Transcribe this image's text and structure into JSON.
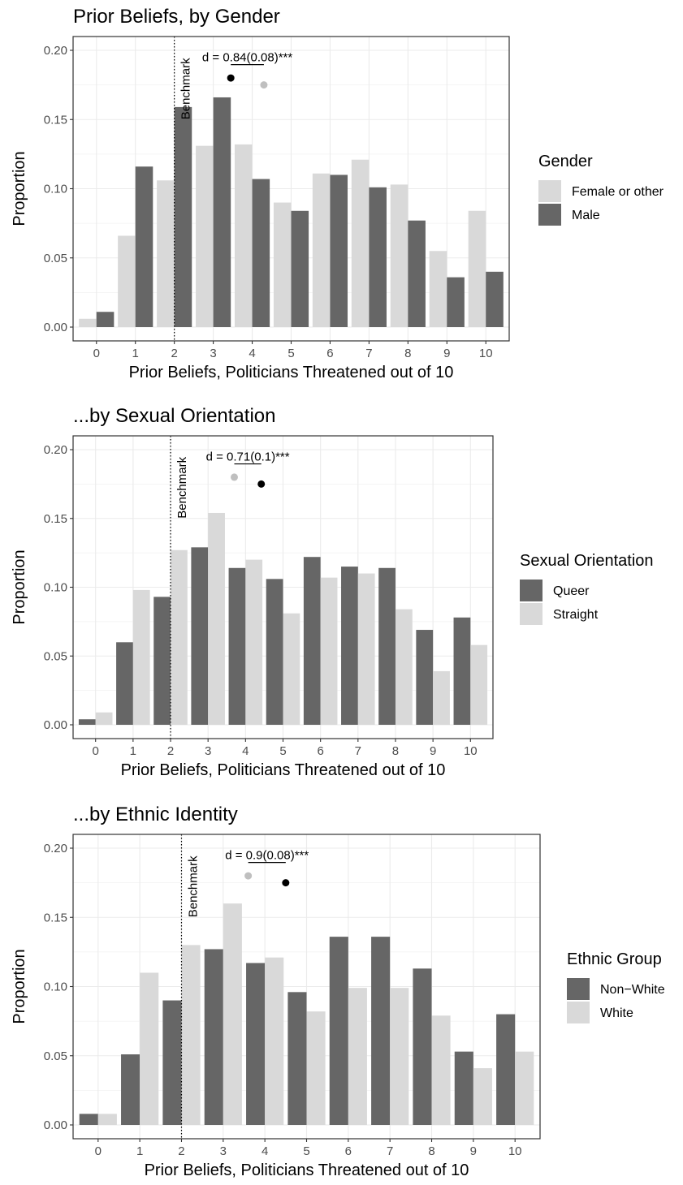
{
  "chart_data": [
    {
      "type": "bar",
      "title": "Prior Beliefs, by Gender",
      "xlabel": "Prior Beliefs, Politicians Threatened out of 10",
      "ylabel": "Proportion",
      "categories": [
        "0",
        "1",
        "2",
        "3",
        "4",
        "5",
        "6",
        "7",
        "8",
        "9",
        "10"
      ],
      "ylim": [
        0,
        0.205
      ],
      "yticks": [
        "0.00",
        "0.05",
        "0.10",
        "0.15",
        "0.20"
      ],
      "grid": true,
      "legend_title": "Gender",
      "legend_position": "right",
      "series": [
        {
          "name": "Female or other",
          "color": "#d9d9d9",
          "values": [
            0.006,
            0.066,
            0.106,
            0.131,
            0.132,
            0.09,
            0.111,
            0.121,
            0.103,
            0.055,
            0.084
          ]
        },
        {
          "name": "Male",
          "color": "#666666",
          "values": [
            0.011,
            0.116,
            0.159,
            0.166,
            0.107,
            0.084,
            0.11,
            0.101,
            0.077,
            0.036,
            0.04
          ]
        }
      ],
      "benchmark": {
        "x": 2,
        "label": "Benchmark"
      },
      "annotation": "d = 0.84(0.08)***",
      "means": [
        {
          "series": "Male",
          "value": 3.45,
          "y": 0.18,
          "color": "#000000"
        },
        {
          "series": "Female or other",
          "value": 4.3,
          "y": 0.175,
          "color": "#bfbfbf"
        }
      ]
    },
    {
      "type": "bar",
      "title": "...by Sexual Orientation",
      "xlabel": "Prior Beliefs, Politicians Threatened out of 10",
      "ylabel": "Proportion",
      "categories": [
        "0",
        "1",
        "2",
        "3",
        "4",
        "5",
        "6",
        "7",
        "8",
        "9",
        "10"
      ],
      "ylim": [
        0,
        0.205
      ],
      "yticks": [
        "0.00",
        "0.05",
        "0.10",
        "0.15",
        "0.20"
      ],
      "grid": true,
      "legend_title": "Sexual Orientation",
      "legend_position": "right",
      "series": [
        {
          "name": "Queer",
          "color": "#666666",
          "values": [
            0.004,
            0.06,
            0.093,
            0.129,
            0.114,
            0.106,
            0.122,
            0.115,
            0.114,
            0.069,
            0.078
          ]
        },
        {
          "name": "Straight",
          "color": "#d9d9d9",
          "values": [
            0.009,
            0.098,
            0.127,
            0.154,
            0.12,
            0.081,
            0.107,
            0.11,
            0.084,
            0.039,
            0.058
          ]
        }
      ],
      "benchmark": {
        "x": 2,
        "label": "Benchmark"
      },
      "annotation": "d = 0.71(0.1)***",
      "means": [
        {
          "series": "Straight",
          "value": 3.7,
          "y": 0.18,
          "color": "#bfbfbf"
        },
        {
          "series": "Queer",
          "value": 4.42,
          "y": 0.175,
          "color": "#000000"
        }
      ]
    },
    {
      "type": "bar",
      "title": "...by Ethnic Identity",
      "xlabel": "Prior Beliefs, Politicians Threatened out of 10",
      "ylabel": "Proportion",
      "categories": [
        "0",
        "1",
        "2",
        "3",
        "4",
        "5",
        "6",
        "7",
        "8",
        "9",
        "10"
      ],
      "ylim": [
        0,
        0.205
      ],
      "yticks": [
        "0.00",
        "0.05",
        "0.10",
        "0.15",
        "0.20"
      ],
      "grid": true,
      "legend_title": "Ethnic Group",
      "legend_position": "right",
      "series": [
        {
          "name": "Non−White",
          "color": "#666666",
          "values": [
            0.008,
            0.051,
            0.09,
            0.127,
            0.117,
            0.096,
            0.136,
            0.136,
            0.113,
            0.053,
            0.08
          ]
        },
        {
          "name": "White",
          "color": "#d9d9d9",
          "values": [
            0.008,
            0.11,
            0.13,
            0.16,
            0.121,
            0.082,
            0.099,
            0.099,
            0.079,
            0.041,
            0.053
          ]
        }
      ],
      "benchmark": {
        "x": 2,
        "label": "Benchmark"
      },
      "annotation": "d = 0.9(0.08)***",
      "means": [
        {
          "series": "White",
          "value": 3.6,
          "y": 0.18,
          "color": "#bfbfbf"
        },
        {
          "series": "Non−White",
          "value": 4.5,
          "y": 0.175,
          "color": "#000000"
        }
      ]
    }
  ]
}
